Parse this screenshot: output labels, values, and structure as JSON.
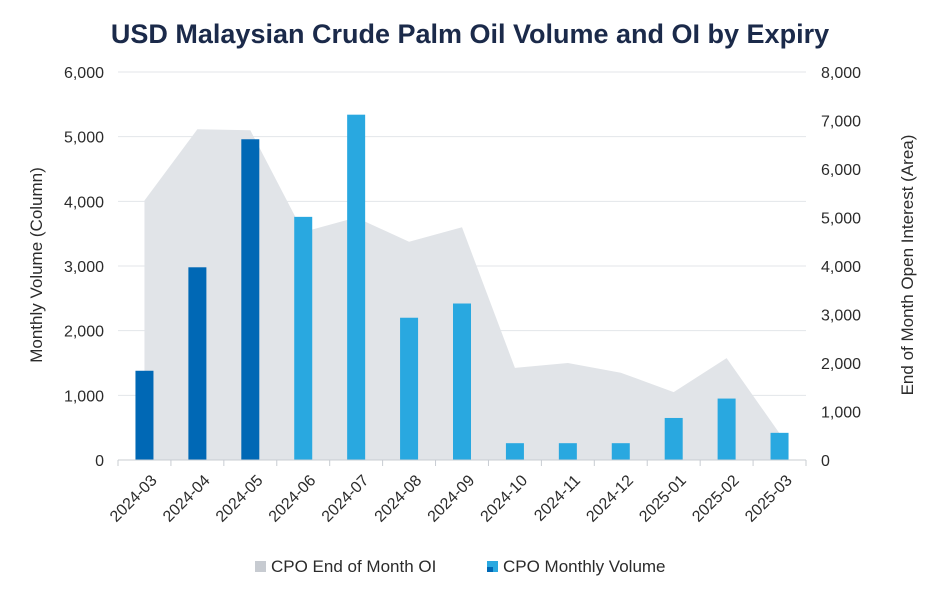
{
  "chart_data": {
    "type": "bar",
    "title": "USD Malaysian Crude Palm Oil Volume and OI by Expiry",
    "categories": [
      "2024-03",
      "2024-04",
      "2024-05",
      "2024-06",
      "2024-07",
      "2024-08",
      "2024-09",
      "2024-10",
      "2024-11",
      "2024-12",
      "2025-01",
      "2025-02",
      "2025-03"
    ],
    "ylabel": "Monthly Volume (Column)",
    "y2label": "End of Month Open Interest (Area)",
    "ylim": [
      0,
      6000
    ],
    "y2lim": [
      0,
      8000
    ],
    "yticks": [
      "0",
      "1,000",
      "2,000",
      "3,000",
      "4,000",
      "5,000",
      "6,000"
    ],
    "y2ticks": [
      "0",
      "1,000",
      "2,000",
      "3,000",
      "4,000",
      "5,000",
      "6,000",
      "7,000",
      "8,000"
    ],
    "grid": true,
    "legend_position": "bottom",
    "series": [
      {
        "name": "CPO End of Month OI",
        "chart_type": "area",
        "axis": "right",
        "color": "#e1e4e8",
        "values": [
          5350,
          6820,
          6800,
          4700,
          5000,
          4500,
          4800,
          1900,
          2000,
          1800,
          1400,
          2100,
          550
        ]
      },
      {
        "name": "CPO Monthly Volume",
        "chart_type": "bar",
        "axis": "left",
        "color": "#29a8e0",
        "highlight_color": "#0068b5",
        "highlighted_categories": [
          "2024-03",
          "2024-04",
          "2024-05"
        ],
        "values": [
          1380,
          2980,
          4960,
          3760,
          5340,
          2200,
          2420,
          260,
          260,
          260,
          650,
          950,
          420
        ]
      }
    ]
  }
}
